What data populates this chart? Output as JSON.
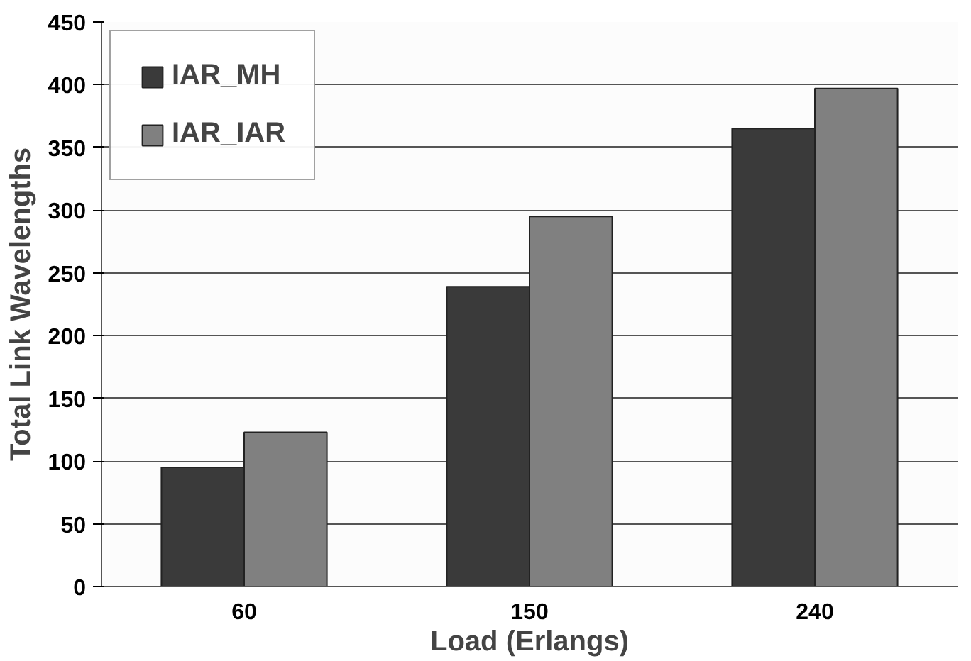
{
  "chart_data": {
    "type": "bar",
    "xlabel": "Load (Erlangs)",
    "ylabel": "Total Link Wavelengths",
    "categories": [
      "60",
      "150",
      "240"
    ],
    "series": [
      {
        "name": "IAR_MH",
        "color": "#3a3a3a",
        "values": [
          95,
          239,
          365
        ]
      },
      {
        "name": "IAR_IAR",
        "color": "#808080",
        "values": [
          123,
          295,
          397
        ]
      }
    ],
    "ylim": [
      0,
      450
    ],
    "yticks": [
      0,
      50,
      100,
      150,
      200,
      250,
      300,
      350,
      400,
      450
    ],
    "grid": "y",
    "legend": "top left"
  }
}
